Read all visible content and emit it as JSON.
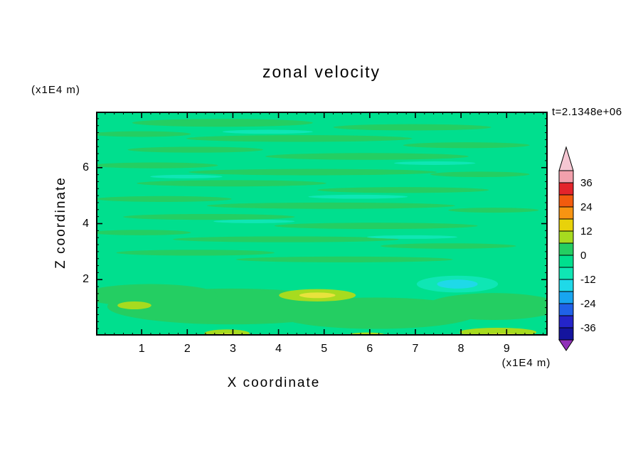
{
  "chart_data": {
    "type": "heatmap",
    "title": "zonal velocity",
    "xlabel": "X coordinate",
    "ylabel": "Z coordinate",
    "x_unit_label": "(x1E4 m)",
    "y_unit_label": "(x1E4 m)",
    "timestamp": "t=2.1348e+06",
    "xlim": [
      0,
      9.9
    ],
    "ylim": [
      0,
      8
    ],
    "x_major_ticks": [
      1,
      2,
      3,
      4,
      5,
      6,
      7,
      8,
      9
    ],
    "x_minor_step": 0.2,
    "y_major_ticks": [
      2,
      4,
      6
    ],
    "y_minor_step": 0.25,
    "grid": false,
    "frame_color": "#000000",
    "colorbar": {
      "label_values": [
        36,
        24,
        12,
        0,
        -12,
        -24,
        -36
      ],
      "level_step": 6,
      "arrow_top_color": "#F5C6D2",
      "arrow_bottom_color": "#9031B8",
      "bands": [
        {
          "min": 36,
          "max": 42,
          "color": "#F2A0AC"
        },
        {
          "min": 30,
          "max": 36,
          "color": "#E3242B"
        },
        {
          "min": 24,
          "max": 30,
          "color": "#F25B0E"
        },
        {
          "min": 18,
          "max": 24,
          "color": "#F79412"
        },
        {
          "min": 12,
          "max": 18,
          "color": "#E8D20A"
        },
        {
          "min": 6,
          "max": 12,
          "color": "#A7DB1F"
        },
        {
          "min": 0,
          "max": 6,
          "color": "#24CE62"
        },
        {
          "min": -6,
          "max": 0,
          "color": "#00DF8E"
        },
        {
          "min": -12,
          "max": -6,
          "color": "#0FE6B4"
        },
        {
          "min": -18,
          "max": -12,
          "color": "#1FD9E8"
        },
        {
          "min": -24,
          "max": -18,
          "color": "#18A5F0"
        },
        {
          "min": -30,
          "max": -24,
          "color": "#1F62E8"
        },
        {
          "min": -36,
          "max": -30,
          "color": "#2424C9"
        },
        {
          "min": -42,
          "max": -36,
          "color": "#14149E"
        }
      ]
    },
    "field": {
      "description": "mostly near-zero zonal velocity: spring-green background with thin horizontal streaks of adjacent contour bands; stronger anomalies near the bottom boundary",
      "background_band": "-6..0",
      "background_color": "#00DF8E",
      "palette": {
        "g": "#24CE62",
        "t": "#0FE6B4",
        "cy": "#1FD9E8",
        "yg": "#A7DB1F",
        "y": "#E8E23C"
      },
      "streaks": [
        {
          "x": 0.28,
          "y": 0.05,
          "w": 0.4,
          "h": 0.035,
          "c": "g"
        },
        {
          "x": 0.7,
          "y": 0.07,
          "w": 0.35,
          "h": 0.028,
          "c": "g"
        },
        {
          "x": 0.1,
          "y": 0.1,
          "w": 0.22,
          "h": 0.025,
          "c": "g"
        },
        {
          "x": 0.45,
          "y": 0.12,
          "w": 0.5,
          "h": 0.03,
          "c": "g"
        },
        {
          "x": 0.82,
          "y": 0.15,
          "w": 0.28,
          "h": 0.026,
          "c": "g"
        },
        {
          "x": 0.22,
          "y": 0.17,
          "w": 0.3,
          "h": 0.026,
          "c": "g"
        },
        {
          "x": 0.6,
          "y": 0.2,
          "w": 0.45,
          "h": 0.03,
          "c": "g"
        },
        {
          "x": 0.13,
          "y": 0.24,
          "w": 0.28,
          "h": 0.026,
          "c": "g"
        },
        {
          "x": 0.48,
          "y": 0.27,
          "w": 0.55,
          "h": 0.028,
          "c": "g"
        },
        {
          "x": 0.85,
          "y": 0.28,
          "w": 0.22,
          "h": 0.024,
          "c": "g"
        },
        {
          "x": 0.3,
          "y": 0.32,
          "w": 0.42,
          "h": 0.028,
          "c": "g"
        },
        {
          "x": 0.68,
          "y": 0.35,
          "w": 0.38,
          "h": 0.026,
          "c": "g"
        },
        {
          "x": 0.15,
          "y": 0.39,
          "w": 0.3,
          "h": 0.026,
          "c": "g"
        },
        {
          "x": 0.52,
          "y": 0.42,
          "w": 0.55,
          "h": 0.028,
          "c": "g"
        },
        {
          "x": 0.88,
          "y": 0.44,
          "w": 0.2,
          "h": 0.022,
          "c": "g"
        },
        {
          "x": 0.25,
          "y": 0.47,
          "w": 0.38,
          "h": 0.026,
          "c": "g"
        },
        {
          "x": 0.62,
          "y": 0.51,
          "w": 0.45,
          "h": 0.028,
          "c": "g"
        },
        {
          "x": 0.1,
          "y": 0.54,
          "w": 0.22,
          "h": 0.024,
          "c": "g"
        },
        {
          "x": 0.42,
          "y": 0.57,
          "w": 0.5,
          "h": 0.026,
          "c": "g"
        },
        {
          "x": 0.78,
          "y": 0.6,
          "w": 0.3,
          "h": 0.024,
          "c": "g"
        },
        {
          "x": 0.22,
          "y": 0.63,
          "w": 0.35,
          "h": 0.026,
          "c": "g"
        },
        {
          "x": 0.55,
          "y": 0.66,
          "w": 0.48,
          "h": 0.026,
          "c": "g"
        },
        {
          "x": 0.38,
          "y": 0.09,
          "w": 0.2,
          "h": 0.018,
          "c": "t"
        },
        {
          "x": 0.75,
          "y": 0.23,
          "w": 0.18,
          "h": 0.016,
          "c": "t"
        },
        {
          "x": 0.2,
          "y": 0.29,
          "w": 0.16,
          "h": 0.016,
          "c": "t"
        },
        {
          "x": 0.58,
          "y": 0.38,
          "w": 0.22,
          "h": 0.018,
          "c": "t"
        },
        {
          "x": 0.35,
          "y": 0.49,
          "w": 0.18,
          "h": 0.016,
          "c": "t"
        },
        {
          "x": 0.7,
          "y": 0.56,
          "w": 0.2,
          "h": 0.016,
          "c": "t"
        },
        {
          "x": 0.3,
          "y": 0.87,
          "w": 0.55,
          "h": 0.16,
          "c": "g"
        },
        {
          "x": 0.62,
          "y": 0.9,
          "w": 0.45,
          "h": 0.14,
          "c": "g"
        },
        {
          "x": 0.88,
          "y": 0.87,
          "w": 0.3,
          "h": 0.12,
          "c": "g"
        },
        {
          "x": 0.12,
          "y": 0.82,
          "w": 0.3,
          "h": 0.1,
          "c": "g"
        },
        {
          "x": 0.8,
          "y": 0.77,
          "w": 0.18,
          "h": 0.075,
          "c": "t"
        },
        {
          "x": 0.8,
          "y": 0.77,
          "w": 0.09,
          "h": 0.04,
          "c": "cy"
        },
        {
          "x": 0.49,
          "y": 0.82,
          "w": 0.17,
          "h": 0.055,
          "c": "yg"
        },
        {
          "x": 0.49,
          "y": 0.82,
          "w": 0.08,
          "h": 0.025,
          "c": "y"
        },
        {
          "x": 0.085,
          "y": 0.865,
          "w": 0.075,
          "h": 0.035,
          "c": "yg"
        },
        {
          "x": 0.29,
          "y": 0.99,
          "w": 0.1,
          "h": 0.035,
          "c": "yg"
        },
        {
          "x": 0.29,
          "y": 1.0,
          "w": 0.06,
          "h": 0.018,
          "c": "y"
        },
        {
          "x": 0.6,
          "y": 0.997,
          "w": 0.08,
          "h": 0.022,
          "c": "yg"
        },
        {
          "x": 0.89,
          "y": 0.985,
          "w": 0.17,
          "h": 0.04,
          "c": "yg"
        },
        {
          "x": 0.9,
          "y": 1.0,
          "w": 0.09,
          "h": 0.018,
          "c": "y"
        }
      ]
    }
  }
}
